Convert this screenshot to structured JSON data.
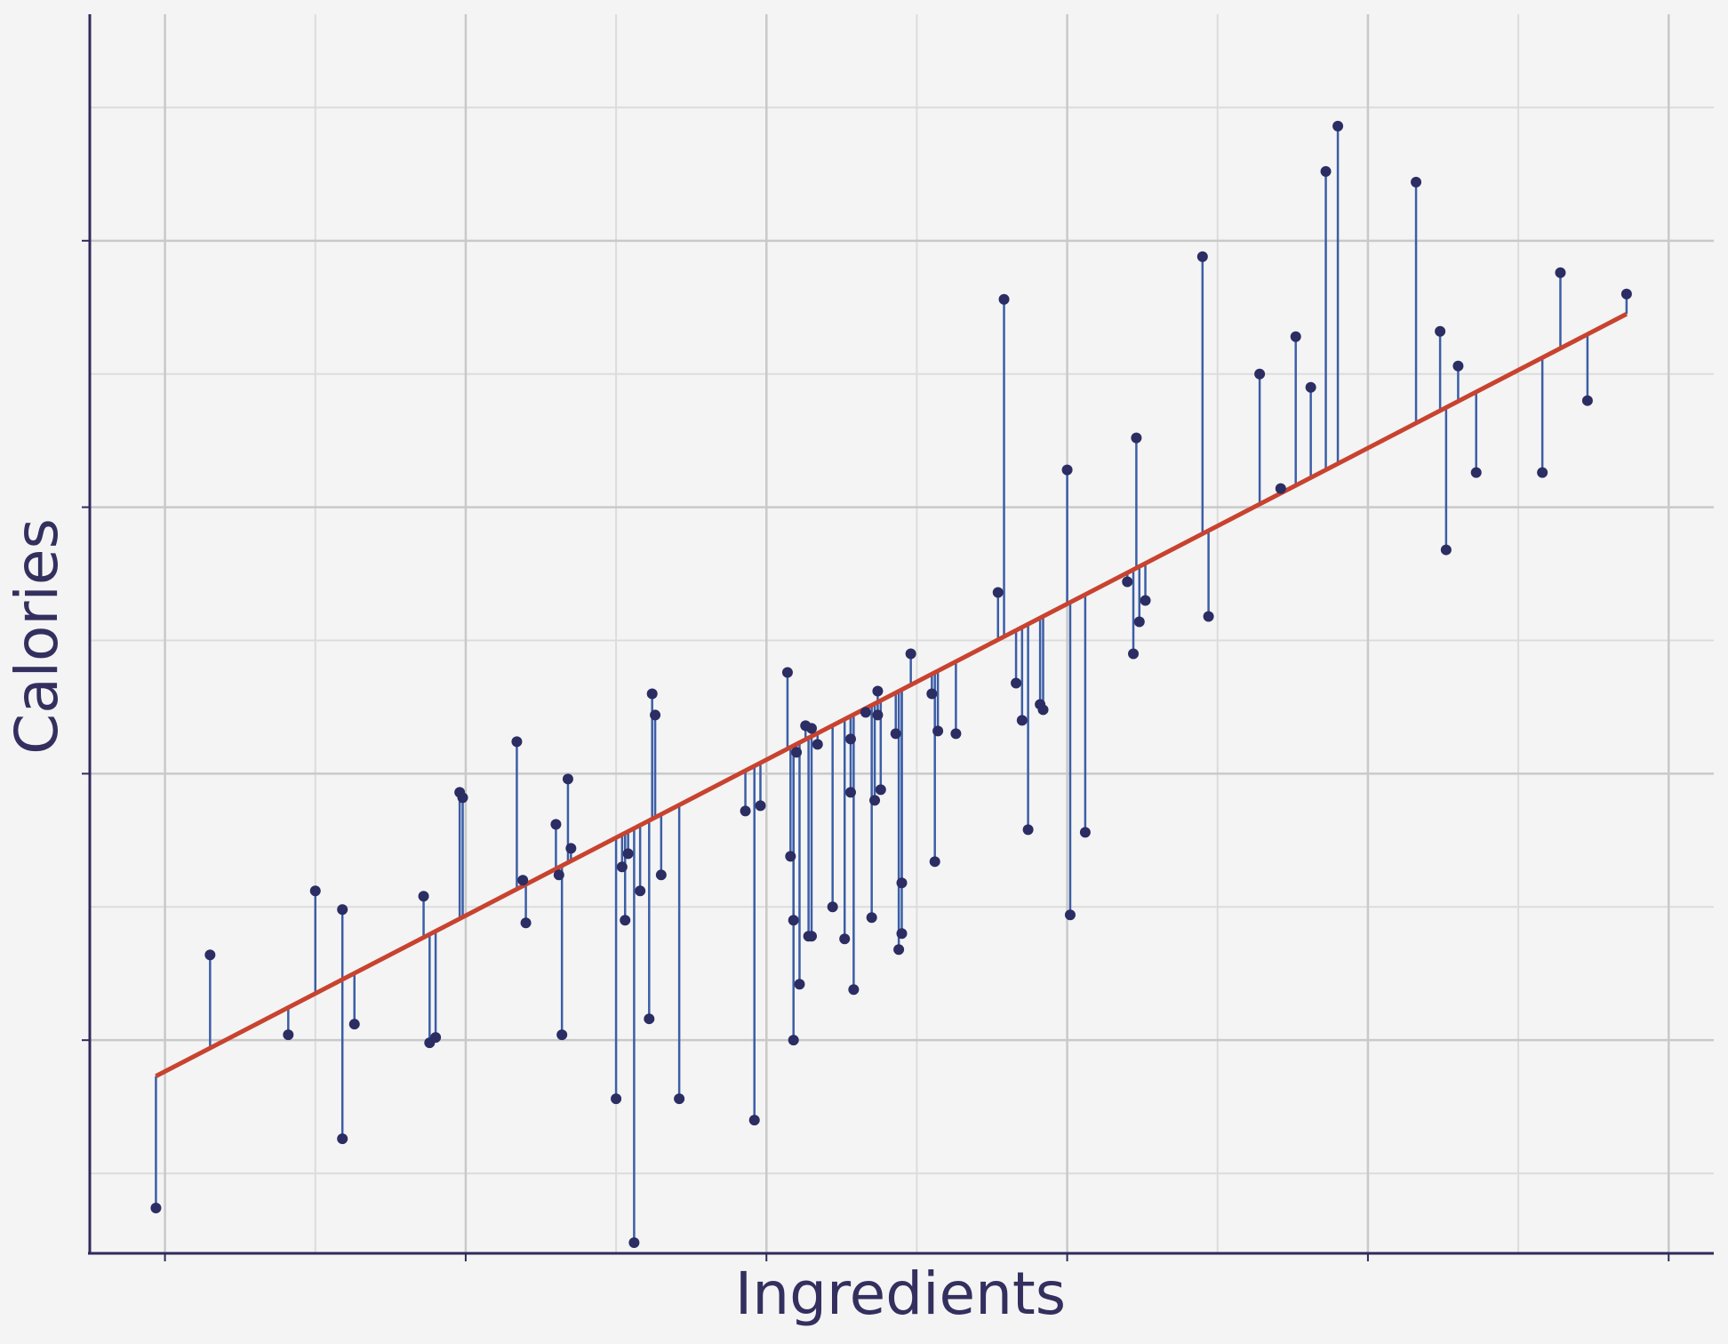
{
  "chart_data": {
    "type": "scatter",
    "title": "",
    "xlabel": "Ingredients",
    "ylabel": "Calories",
    "xlim": [
      -0.25,
      5.15
    ],
    "ylim": [
      -0.8,
      3.85
    ],
    "grid": true,
    "tick_labels_shown": false,
    "colors": {
      "points": "#2b2d63",
      "residuals": "#3b5ea6",
      "fit_line": "#c8432f",
      "axes": "#2f2a5c",
      "background": "#f4f4f4"
    },
    "fit_line": {
      "x": [
        -0.03,
        4.86
      ],
      "y": [
        -0.135,
        2.725
      ]
    },
    "series": [
      {
        "type": "scatter",
        "x": [
          -0.03,
          0.15,
          0.41,
          0.5,
          0.59,
          0.59,
          0.63,
          0.86,
          0.88,
          0.9,
          0.98,
          0.99,
          1.17,
          1.19,
          1.2,
          1.3,
          1.31,
          1.32,
          1.34,
          1.35,
          1.5,
          1.52,
          1.53,
          1.54,
          1.56,
          1.58,
          1.61,
          1.62,
          1.63,
          1.65,
          1.71,
          1.93,
          1.96,
          1.98,
          2.07,
          2.08,
          2.09,
          2.09,
          2.1,
          2.11,
          2.13,
          2.14,
          2.15,
          2.15,
          2.17,
          2.22,
          2.26,
          2.28,
          2.28,
          2.29,
          2.33,
          2.35,
          2.36,
          2.37,
          2.37,
          2.38,
          2.43,
          2.44,
          2.45,
          2.45,
          2.48,
          2.55,
          2.56,
          2.57,
          2.63,
          2.77,
          2.79,
          2.83,
          2.85,
          2.87,
          2.91,
          2.92,
          3.0,
          3.01,
          3.06,
          3.2,
          3.22,
          3.23,
          3.24,
          3.26,
          3.45,
          3.47,
          3.64,
          3.71,
          3.76,
          3.81,
          3.86,
          3.9,
          4.16,
          4.24,
          4.26,
          4.3,
          4.36,
          4.58,
          4.64,
          4.73,
          4.86
        ],
        "y": [
          -0.63,
          0.32,
          0.02,
          0.56,
          0.49,
          -0.37,
          0.06,
          0.54,
          -0.01,
          0.01,
          0.93,
          0.91,
          1.12,
          0.6,
          0.44,
          0.81,
          0.62,
          0.02,
          0.98,
          0.72,
          -0.22,
          0.65,
          0.45,
          0.7,
          -0.76,
          0.56,
          0.08,
          1.3,
          1.22,
          0.62,
          -0.22,
          0.86,
          -0.3,
          0.88,
          1.38,
          0.69,
          0.0,
          0.45,
          1.08,
          0.21,
          1.18,
          0.39,
          0.39,
          1.17,
          1.11,
          0.5,
          0.38,
          1.13,
          0.93,
          0.19,
          1.23,
          0.46,
          0.9,
          1.22,
          1.31,
          0.94,
          1.15,
          0.34,
          0.4,
          0.59,
          1.45,
          1.3,
          0.67,
          1.16,
          1.15,
          1.68,
          2.78,
          1.34,
          1.2,
          0.79,
          1.26,
          1.24,
          2.14,
          0.47,
          0.78,
          1.72,
          1.45,
          2.26,
          1.57,
          1.65,
          2.94,
          1.59,
          2.5,
          2.07,
          2.64,
          2.45,
          3.26,
          3.43,
          3.22,
          2.66,
          1.84,
          2.53,
          2.13,
          2.13,
          2.88,
          2.4,
          2.8
        ]
      }
    ]
  }
}
